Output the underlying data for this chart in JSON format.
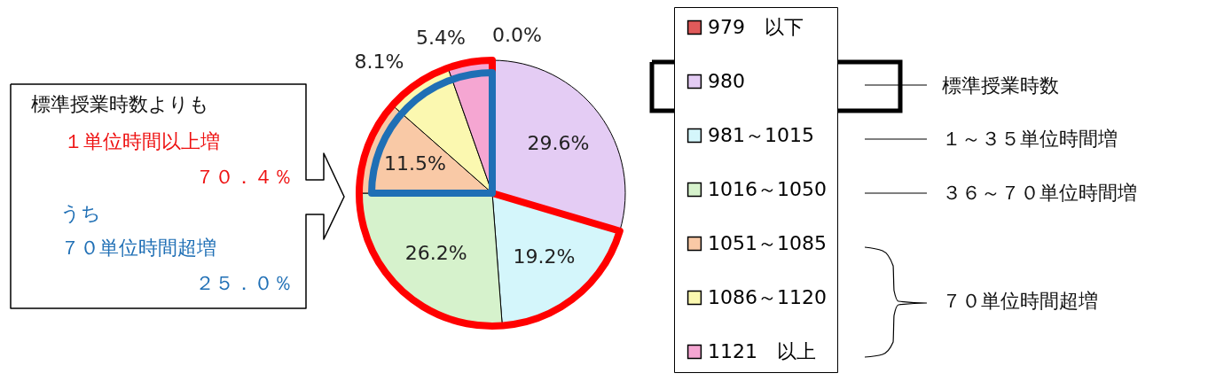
{
  "chart_data": {
    "type": "pie",
    "categories": [
      "979　以下",
      "980",
      "981～1015",
      "1016～1050",
      "1051～1085",
      "1086～1120",
      "1121　以上"
    ],
    "values": [
      0.0,
      29.6,
      19.2,
      26.2,
      11.5,
      8.1,
      5.4
    ],
    "colors": [
      "#e05a5a",
      "#e4ccf4",
      "#d4f6fb",
      "#d6f2cc",
      "#f9c9a6",
      "#fbf8b0",
      "#f5a6d2"
    ],
    "value_labels": [
      "0.0%",
      "29.6%",
      "19.2%",
      "26.2%",
      "11.5%",
      "8.1%",
      "5.4%"
    ],
    "legend": "right",
    "annotations": [
      "標準授業時数よりも",
      "１単位時間以上増",
      "７０．４％",
      "うち",
      "７０単位時間超増",
      "２５．０％",
      "標準授業時数",
      "１～３５単位時間増",
      "３６～７０単位時間増",
      "７０単位時間超増"
    ]
  }
}
